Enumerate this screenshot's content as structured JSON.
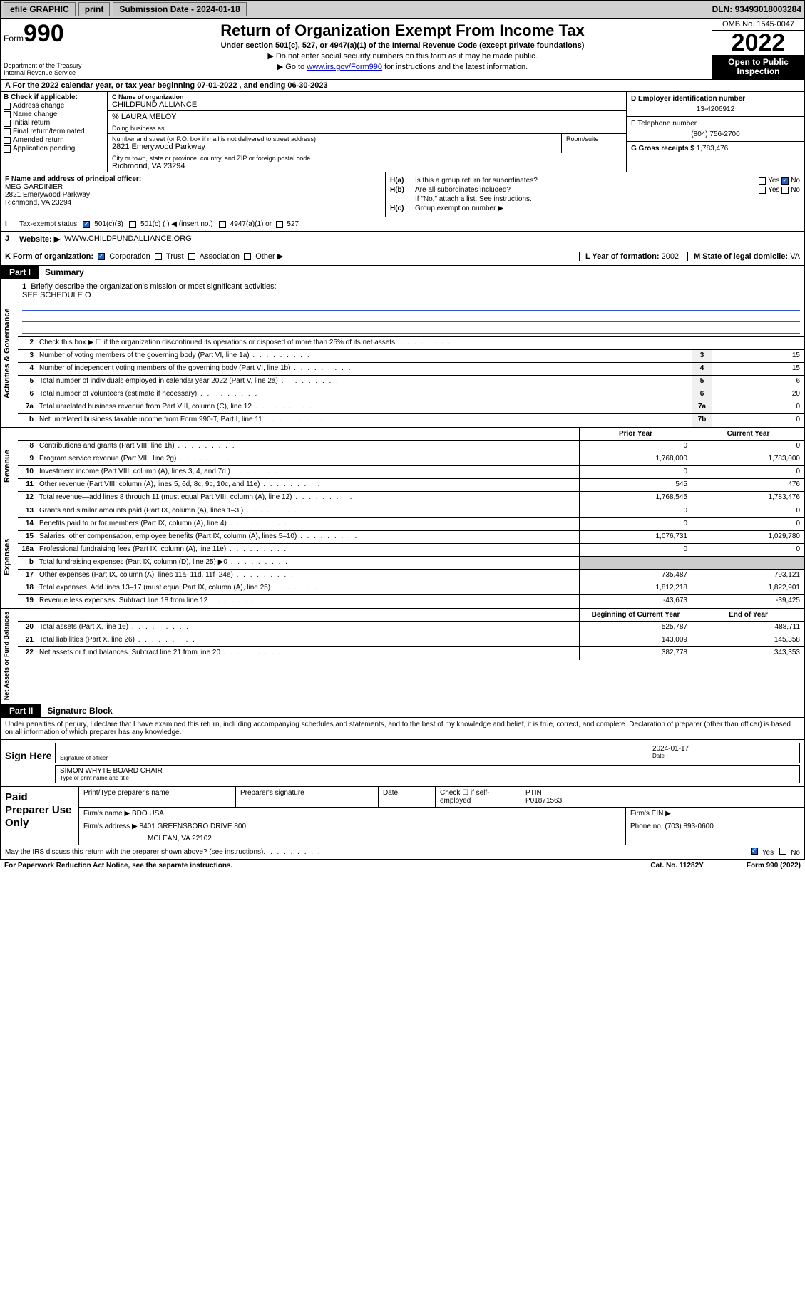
{
  "header": {
    "efile": "efile GRAPHIC",
    "print": "print",
    "sub_date_label": "Submission Date - ",
    "sub_date": "2024-01-18",
    "dln_label": "DLN: ",
    "dln": "93493018003284"
  },
  "title": {
    "form_word": "Form",
    "form_num": "990",
    "main": "Return of Organization Exempt From Income Tax",
    "sub": "Under section 501(c), 527, or 4947(a)(1) of the Internal Revenue Code (except private foundations)",
    "note": "▶ Do not enter social security numbers on this form as it may be made public.",
    "link_pre": "▶ Go to ",
    "link_url": "www.irs.gov/Form990",
    "link_post": " for instructions and the latest information.",
    "omb": "OMB No. 1545-0047",
    "year": "2022",
    "open1": "Open to Public",
    "open2": "Inspection",
    "dept": "Department of the Treasury",
    "irs": "Internal Revenue Service"
  },
  "period": {
    "label_a": "A For the 2022 calendar year, or tax year beginning ",
    "begin": "07-01-2022",
    "mid": " , and ending ",
    "end": "06-30-2023"
  },
  "checkB": {
    "label": "B Check if applicable:",
    "addr": "Address change",
    "name": "Name change",
    "init": "Initial return",
    "final": "Final return/terminated",
    "amend": "Amended return",
    "app": "Application pending"
  },
  "org": {
    "c_label": "C Name of organization",
    "name": "CHILDFUND ALLIANCE",
    "care_of": "% LAURA MELOY",
    "dba_label": "Doing business as",
    "addr_label": "Number and street (or P.O. box if mail is not delivered to street address)",
    "room_label": "Room/suite",
    "addr": "2821 Emerywood Parkway",
    "city_label": "City or town, state or province, country, and ZIP or foreign postal code",
    "city": "Richmond, VA  23294"
  },
  "right": {
    "d_label": "D Employer identification number",
    "ein": "13-4206912",
    "e_label": "E Telephone number",
    "phone": "(804) 756-2700",
    "g_label": "G Gross receipts $ ",
    "gross": "1,783,476"
  },
  "officer": {
    "f_label": "F Name and address of principal officer:",
    "name": "MEG GARDINIER",
    "addr1": "2821 Emerywood Parkway",
    "addr2": "Richmond, VA  23294"
  },
  "h": {
    "ha_label": "H(a)",
    "ha_text": "Is this a group return for subordinates?",
    "hb_label": "H(b)",
    "hb_text": "Are all subordinates included?",
    "hb_note": "If \"No,\" attach a list. See instructions.",
    "hc_label": "H(c)",
    "hc_text": "Group exemption number ▶",
    "yes": "Yes",
    "no": "No"
  },
  "status": {
    "i_label": "I",
    "label": "Tax-exempt status:",
    "c3": "501(c)(3)",
    "c_other": "501(c) (  ) ◀ (insert no.)",
    "a1": "4947(a)(1) or",
    "s527": "527"
  },
  "website": {
    "j_label": "J",
    "label": "Website: ▶",
    "url": "WWW.CHILDFUNDALLIANCE.ORG"
  },
  "formorg": {
    "k_label": "K Form of organization:",
    "corp": "Corporation",
    "trust": "Trust",
    "assoc": "Association",
    "other": "Other ▶",
    "l_label": "L Year of formation: ",
    "l_val": "2002",
    "m_label": "M State of legal domicile: ",
    "m_val": "VA"
  },
  "part1": {
    "tab": "Part I",
    "title": "Summary"
  },
  "mission": {
    "num": "1",
    "label": "Briefly describe the organization's mission or most significant activities:",
    "text": "SEE SCHEDULE O"
  },
  "gov_lines": [
    {
      "n": "2",
      "t": "Check this box ▶ ☐  if the organization discontinued its operations or disposed of more than 25% of its net assets.",
      "box": "",
      "v": ""
    },
    {
      "n": "3",
      "t": "Number of voting members of the governing body (Part VI, line 1a)",
      "box": "3",
      "v": "15"
    },
    {
      "n": "4",
      "t": "Number of independent voting members of the governing body (Part VI, line 1b)",
      "box": "4",
      "v": "15"
    },
    {
      "n": "5",
      "t": "Total number of individuals employed in calendar year 2022 (Part V, line 2a)",
      "box": "5",
      "v": "6"
    },
    {
      "n": "6",
      "t": "Total number of volunteers (estimate if necessary)",
      "box": "6",
      "v": "20"
    },
    {
      "n": "7a",
      "t": "Total unrelated business revenue from Part VIII, column (C), line 12",
      "box": "7a",
      "v": "0"
    },
    {
      "n": "b",
      "t": "Net unrelated business taxable income from Form 990-T, Part I, line 11",
      "box": "7b",
      "v": "0"
    }
  ],
  "rev_hdr": {
    "prior": "Prior Year",
    "curr": "Current Year"
  },
  "rev_lines": [
    {
      "n": "8",
      "t": "Contributions and grants (Part VIII, line 1h)",
      "p": "0",
      "c": "0"
    },
    {
      "n": "9",
      "t": "Program service revenue (Part VIII, line 2g)",
      "p": "1,768,000",
      "c": "1,783,000"
    },
    {
      "n": "10",
      "t": "Investment income (Part VIII, column (A), lines 3, 4, and 7d )",
      "p": "0",
      "c": "0"
    },
    {
      "n": "11",
      "t": "Other revenue (Part VIII, column (A), lines 5, 6d, 8c, 9c, 10c, and 11e)",
      "p": "545",
      "c": "476"
    },
    {
      "n": "12",
      "t": "Total revenue—add lines 8 through 11 (must equal Part VIII, column (A), line 12)",
      "p": "1,768,545",
      "c": "1,783,476"
    }
  ],
  "exp_lines": [
    {
      "n": "13",
      "t": "Grants and similar amounts paid (Part IX, column (A), lines 1–3 )",
      "p": "0",
      "c": "0"
    },
    {
      "n": "14",
      "t": "Benefits paid to or for members (Part IX, column (A), line 4)",
      "p": "0",
      "c": "0"
    },
    {
      "n": "15",
      "t": "Salaries, other compensation, employee benefits (Part IX, column (A), lines 5–10)",
      "p": "1,076,731",
      "c": "1,029,780"
    },
    {
      "n": "16a",
      "t": "Professional fundraising fees (Part IX, column (A), line 11e)",
      "p": "0",
      "c": "0"
    },
    {
      "n": "b",
      "t": "Total fundraising expenses (Part IX, column (D), line 25) ▶0",
      "p": "",
      "c": ""
    },
    {
      "n": "17",
      "t": "Other expenses (Part IX, column (A), lines 11a–11d, 11f–24e)",
      "p": "735,487",
      "c": "793,121"
    },
    {
      "n": "18",
      "t": "Total expenses. Add lines 13–17 (must equal Part IX, column (A), line 25)",
      "p": "1,812,218",
      "c": "1,822,901"
    },
    {
      "n": "19",
      "t": "Revenue less expenses. Subtract line 18 from line 12",
      "p": "-43,673",
      "c": "-39,425"
    }
  ],
  "net_hdr": {
    "prior": "Beginning of Current Year",
    "curr": "End of Year"
  },
  "net_lines": [
    {
      "n": "20",
      "t": "Total assets (Part X, line 16)",
      "p": "525,787",
      "c": "488,711"
    },
    {
      "n": "21",
      "t": "Total liabilities (Part X, line 26)",
      "p": "143,009",
      "c": "145,358"
    },
    {
      "n": "22",
      "t": "Net assets or fund balances. Subtract line 21 from line 20",
      "p": "382,778",
      "c": "343,353"
    }
  ],
  "part2": {
    "tab": "Part II",
    "title": "Signature Block",
    "decl": "Under penalties of perjury, I declare that I have examined this return, including accompanying schedules and statements, and to the best of my knowledge and belief, it is true, correct, and complete. Declaration of preparer (other than officer) is based on all information of which preparer has any knowledge."
  },
  "sign": {
    "here": "Sign Here",
    "sig_label": "Signature of officer",
    "date_label": "Date",
    "date": "2024-01-17",
    "name": "SIMON WHYTE  BOARD CHAIR",
    "name_label": "Type or print name and title"
  },
  "prep": {
    "title": "Paid Preparer Use Only",
    "h1": "Print/Type preparer's name",
    "h2": "Preparer's signature",
    "h3": "Date",
    "h4_chk": "Check ☐ if self-employed",
    "h5": "PTIN",
    "ptin": "P01871563",
    "firm_label": "Firm's name    ▶ ",
    "firm": "BDO USA",
    "ein_label": "Firm's EIN ▶",
    "addr_label": "Firm's address ▶ ",
    "addr1": "8401 GREENSBORO DRIVE 800",
    "addr2": "MCLEAN, VA  22102",
    "phone_label": "Phone no. ",
    "phone": "(703) 893-0600"
  },
  "discuss": {
    "text": "May the IRS discuss this return with the preparer shown above? (see instructions)",
    "yes": "Yes",
    "no": "No"
  },
  "footer": {
    "pra": "For Paperwork Reduction Act Notice, see the separate instructions.",
    "cat": "Cat. No. 11282Y",
    "form": "Form 990 (2022)"
  },
  "vert": {
    "gov": "Activities & Governance",
    "rev": "Revenue",
    "exp": "Expenses",
    "net": "Net Assets or Fund Balances"
  }
}
